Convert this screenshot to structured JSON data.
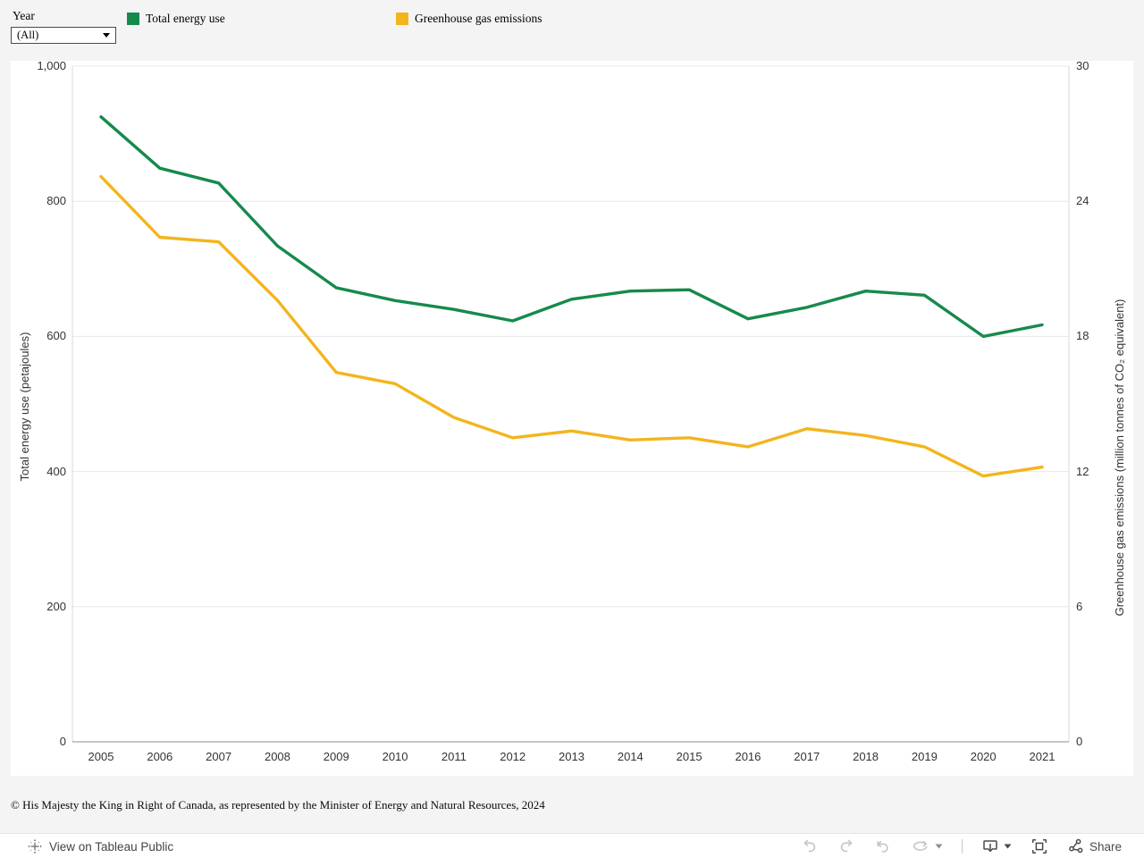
{
  "filter": {
    "label": "Year",
    "value": "(All)"
  },
  "legend": [
    {
      "label": "Total energy use",
      "color": "#168a4d"
    },
    {
      "label": "Greenhouse gas emissions",
      "color": "#f2b51d"
    }
  ],
  "chart_data": {
    "type": "line",
    "x": [
      2005,
      2006,
      2007,
      2008,
      2009,
      2010,
      2011,
      2012,
      2013,
      2014,
      2015,
      2016,
      2017,
      2018,
      2019,
      2020,
      2021
    ],
    "x_tick_labels": [
      "2005",
      "2006",
      "2007",
      "2008",
      "2009",
      "2010",
      "2011",
      "2012",
      "2013",
      "2014",
      "2015",
      "2016",
      "2017",
      "2018",
      "2019",
      "2020",
      "2021"
    ],
    "series": [
      {
        "name": "Total energy use",
        "axis": "left",
        "color": "#168a4d",
        "values": [
          925,
          849,
          827,
          734,
          672,
          653,
          640,
          623,
          655,
          667,
          669,
          626,
          643,
          667,
          661,
          600,
          617
        ]
      },
      {
        "name": "Greenhouse gas emissions",
        "axis": "right",
        "color": "#f2b51d",
        "values": [
          25.1,
          22.4,
          22.2,
          19.6,
          16.4,
          15.9,
          14.4,
          13.5,
          13.8,
          13.4,
          13.5,
          13.1,
          13.9,
          13.6,
          13.1,
          11.8,
          12.2
        ]
      }
    ],
    "left_axis": {
      "label": "Total energy use (petajoules)",
      "range": [
        0,
        1000
      ],
      "ticks": [
        0,
        200,
        400,
        600,
        800,
        1000
      ],
      "tick_labels": [
        "0",
        "200",
        "400",
        "600",
        "800",
        "1,000"
      ]
    },
    "right_axis": {
      "label": "Greenhouse gas emissions (million tonnes of CO₂ equivalent)",
      "range": [
        0,
        30
      ],
      "ticks": [
        0,
        6,
        12,
        18,
        24,
        30
      ],
      "tick_labels": [
        "0",
        "6",
        "12",
        "18",
        "24",
        "30"
      ]
    },
    "grid": true,
    "legend_position": "top",
    "colors": {
      "gridline": "#e8e8e8",
      "side_axis": "#d8d8d8",
      "bottom_axis": "#8f8f8f"
    }
  },
  "footer": {
    "copyright": "© His Majesty the King in Right of Canada, as represented by the Minister of Energy and Natural Resources, 2024"
  },
  "toolbar": {
    "view_label": "View on Tableau Public",
    "share_label": "Share"
  }
}
